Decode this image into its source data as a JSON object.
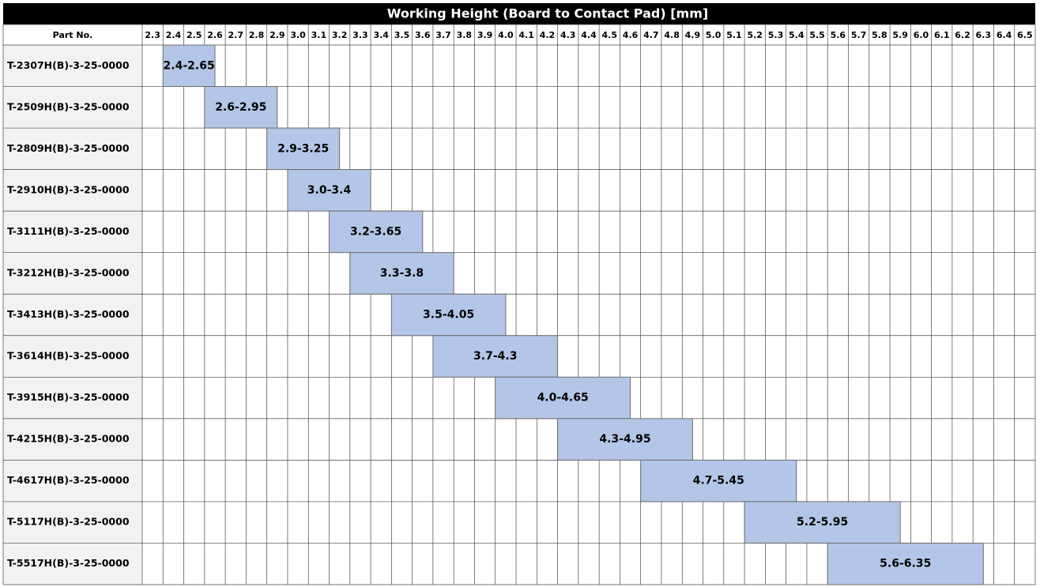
{
  "header": {
    "title": "Working Height (Board to Contact Pad) [mm]",
    "part_label": "Part No.",
    "columns": [
      "2.3",
      "2.4",
      "2.5",
      "2.6",
      "2.7",
      "2.8",
      "2.9",
      "3.0",
      "3.1",
      "3.2",
      "3.3",
      "3.4",
      "3.5",
      "3.6",
      "3.7",
      "3.8",
      "3.9",
      "4.0",
      "4.1",
      "4.2",
      "4.3",
      "4.4",
      "4.5",
      "4.6",
      "4.7",
      "4.8",
      "4.9",
      "5.0",
      "5.1",
      "5.2",
      "5.3",
      "5.4",
      "5.5",
      "5.6",
      "5.7",
      "5.8",
      "5.9",
      "6.0",
      "6.1",
      "6.2",
      "6.3",
      "6.4",
      "6.5"
    ]
  },
  "table": {
    "rows": [
      {
        "part": "T-2307H(B)-3-25-0000",
        "range": "2.4-2.65"
      },
      {
        "part": "T-2509H(B)-3-25-0000",
        "range": "2.6-2.95"
      },
      {
        "part": "T-2809H(B)-3-25-0000",
        "range": "2.9-3.25"
      },
      {
        "part": "T-2910H(B)-3-25-0000",
        "range": "3.0-3.4"
      },
      {
        "part": "T-3111H(B)-3-25-0000",
        "range": "3.2-3.65"
      },
      {
        "part": "T-3212H(B)-3-25-0000",
        "range": "3.3-3.8"
      },
      {
        "part": "T-3413H(B)-3-25-0000",
        "range": "3.5-4.05"
      },
      {
        "part": "T-3614H(B)-3-25-0000",
        "range": "3.7-4.3"
      },
      {
        "part": "T-3915H(B)-3-25-0000",
        "range": "4.0-4.65"
      },
      {
        "part": "T-4215H(B)-3-25-0000",
        "range": "4.3-4.95"
      },
      {
        "part": "T-4617H(B)-3-25-0000",
        "range": "4.7-5.45"
      },
      {
        "part": "T-5117H(B)-3-25-0000",
        "range": "5.2-5.95"
      },
      {
        "part": "T-5517H(B)-3-25-0000",
        "range": "5.6-6.35"
      }
    ]
  }
}
